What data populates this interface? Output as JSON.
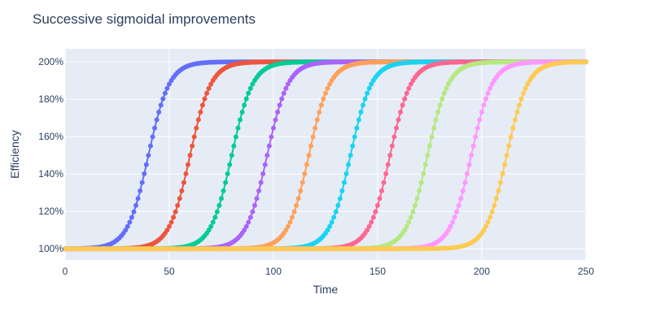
{
  "chart_data": {
    "type": "line",
    "title": "Successive sigmoidal improvements",
    "xlabel": "Time",
    "ylabel": "Efficiency",
    "xlim": [
      0,
      250
    ],
    "ylim": [
      0.94,
      2.07
    ],
    "x_ticks": [
      0,
      50,
      100,
      150,
      200,
      250
    ],
    "x_tick_labels": [
      "0",
      "50",
      "100",
      "150",
      "200",
      "250"
    ],
    "y_ticks": [
      1.0,
      1.2,
      1.4,
      1.6,
      1.8,
      2.0
    ],
    "y_tick_labels": [
      "100%",
      "120%",
      "140%",
      "160%",
      "180%",
      "200%"
    ],
    "grid": true,
    "legend": false,
    "marker": "circle",
    "x_step": 1,
    "series": [
      {
        "midpoint": 40,
        "floor": 1.0,
        "ceiling": 2.0,
        "color": "#636efa"
      },
      {
        "midpoint": 60,
        "floor": 1.0,
        "ceiling": 2.0,
        "color": "#ef553b"
      },
      {
        "midpoint": 80,
        "floor": 1.0,
        "ceiling": 2.0,
        "color": "#00cc96"
      },
      {
        "midpoint": 97,
        "floor": 1.0,
        "ceiling": 2.0,
        "color": "#ab63fa"
      },
      {
        "midpoint": 117,
        "floor": 1.0,
        "ceiling": 2.0,
        "color": "#ffa15a"
      },
      {
        "midpoint": 137,
        "floor": 1.0,
        "ceiling": 2.0,
        "color": "#19d3f3"
      },
      {
        "midpoint": 156,
        "floor": 1.0,
        "ceiling": 2.0,
        "color": "#ff6692"
      },
      {
        "midpoint": 174,
        "floor": 1.0,
        "ceiling": 2.0,
        "color": "#b6e880"
      },
      {
        "midpoint": 195,
        "floor": 1.0,
        "ceiling": 2.0,
        "color": "#ff97ff"
      },
      {
        "midpoint": 212,
        "floor": 1.0,
        "ceiling": 2.0,
        "color": "#fecb52"
      }
    ]
  }
}
